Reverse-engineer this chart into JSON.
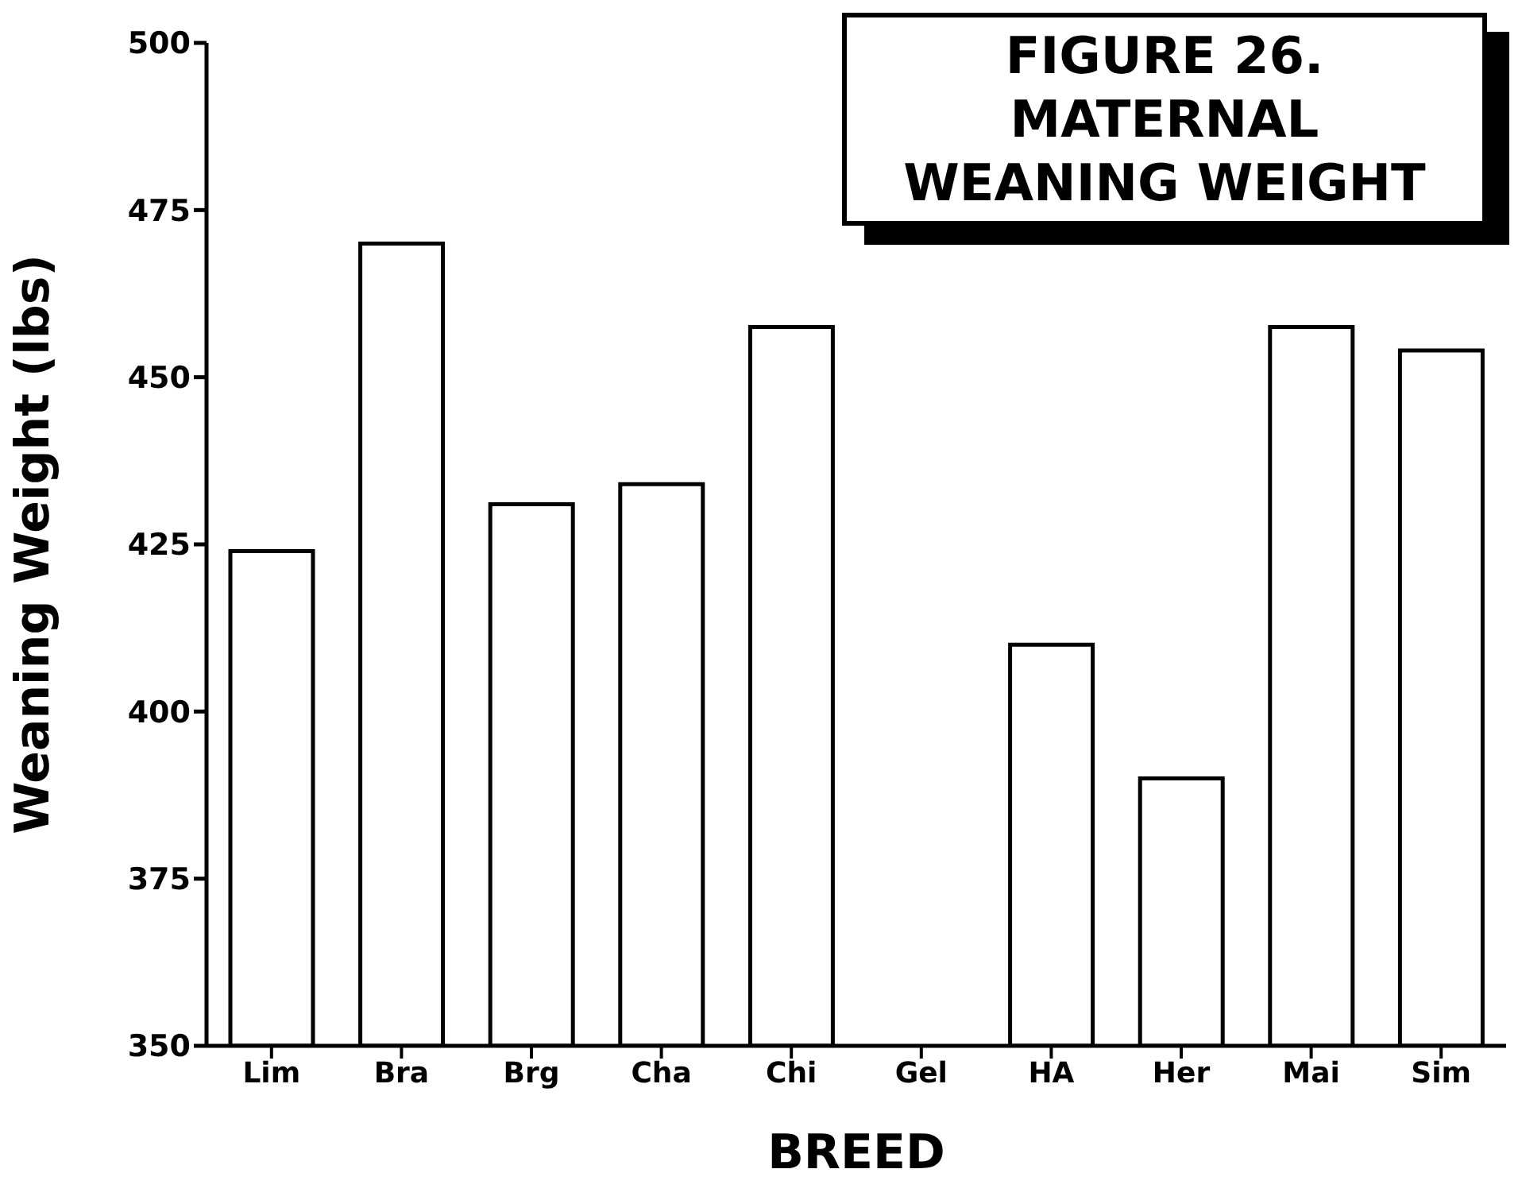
{
  "chart_data": {
    "type": "bar",
    "title": "FIGURE 26.\nMATERNAL\nWEANING WEIGHT",
    "xlabel": "BREED",
    "ylabel": "Weaning Weight (lbs)",
    "categories": [
      "Lim",
      "Bra",
      "Brg",
      "Cha",
      "Chi",
      "Gel",
      "HA",
      "Her",
      "Mai",
      "Sim"
    ],
    "values": [
      424,
      470,
      431,
      434,
      457.5,
      null,
      410,
      390,
      457.5,
      454
    ],
    "color": "#ffffff",
    "ylim": [
      350,
      500
    ],
    "yticks": [
      350,
      375,
      400,
      425,
      450,
      475,
      500
    ],
    "grid": false
  }
}
